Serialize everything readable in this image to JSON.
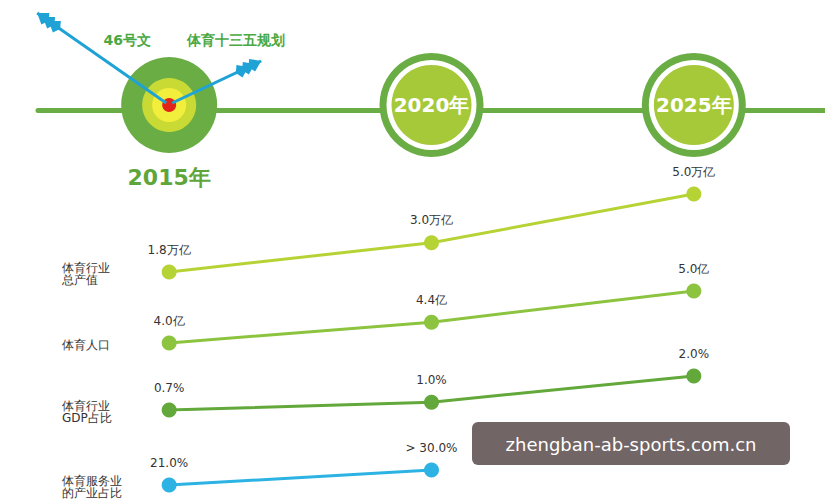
{
  "chart_data": {
    "type": "line",
    "categories": [
      "2015年",
      "2020年",
      "2025年"
    ],
    "annotations": [
      "46号文",
      "体育十三五规划"
    ],
    "watermark": "zhengban-ab-sports.com.cn",
    "series": [
      {
        "name": "体育行业\n总产值",
        "color": "#b5d334",
        "values": [
          1.8,
          3.0,
          5.0
        ],
        "value_labels": [
          "1.8万亿",
          "3.0万亿",
          "5.0万亿"
        ]
      },
      {
        "name": "体育人口",
        "color": "#8cc43f",
        "values": [
          4.0,
          4.4,
          5.0
        ],
        "value_labels": [
          "4.0亿",
          "4.4亿",
          "5.0亿"
        ]
      },
      {
        "name": "体育行业\nGDP占比",
        "color": "#62a83a",
        "values": [
          0.7,
          1.0,
          2.0
        ],
        "value_labels": [
          "0.7%",
          "1.0%",
          "2.0%"
        ]
      },
      {
        "name": "体育服务业\n的产业占比",
        "color": "#2cb3e3",
        "values": [
          21.0,
          30.0,
          null
        ],
        "value_labels": [
          "21.0%",
          "> 30.0%",
          null
        ]
      }
    ],
    "data_labels": true,
    "tick_labels": false,
    "grid": false,
    "marker": "circle"
  }
}
